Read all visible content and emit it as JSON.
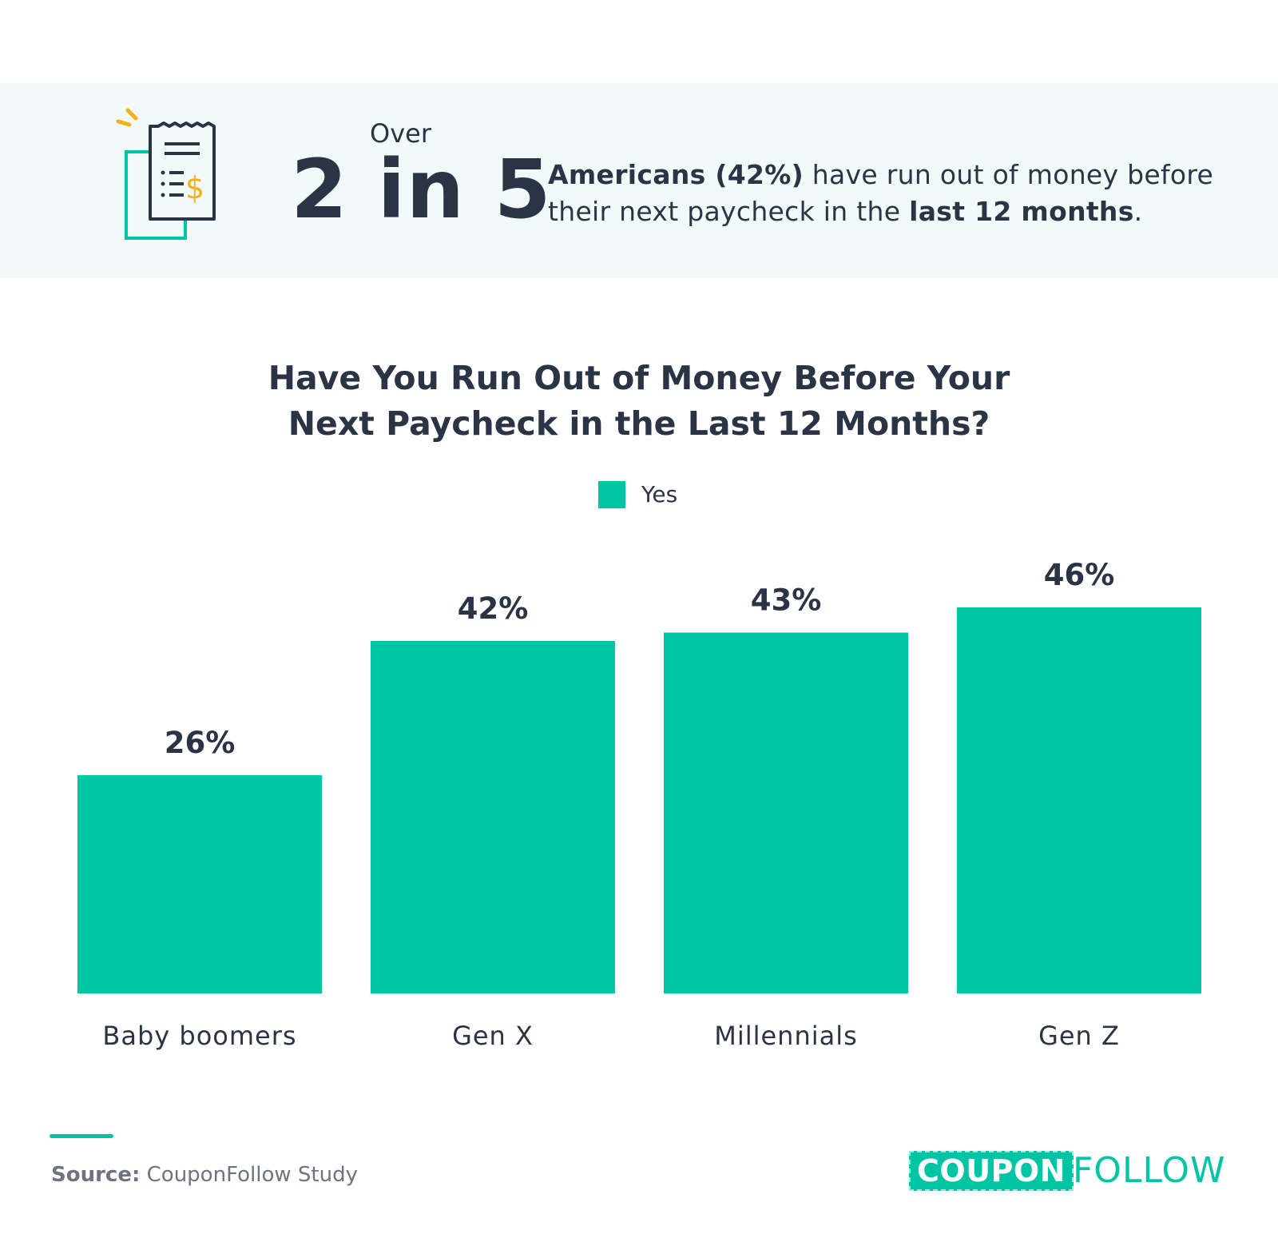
{
  "banner": {
    "over": "Over",
    "stat": "2 in 5",
    "headline_bold_1": "Americans (42%)",
    "headline_text_1": " have run out of money before their next paycheck in the ",
    "headline_bold_2": "last 12 months",
    "headline_text_2": ".",
    "icon": "receipt-dollar-icon"
  },
  "colors": {
    "accent": "#00c5a5",
    "text": "#2b3445",
    "banner_bg": "#f1faf8",
    "icon_yellow": "#f2b01e"
  },
  "chart_data": {
    "type": "bar",
    "title": "Have You Run Out of Money Before Your Next Paycheck in the Last 12 Months?",
    "title_line_1": "Have You Run Out of Money Before Your",
    "title_line_2": "Next Paycheck in the Last 12 Months?",
    "categories": [
      "Baby boomers",
      "Gen X",
      "Millennials",
      "Gen Z"
    ],
    "series": [
      {
        "name": "Yes",
        "values": [
          26,
          42,
          43,
          46
        ]
      }
    ],
    "value_labels": [
      "26%",
      "42%",
      "43%",
      "46%"
    ],
    "unit": "%",
    "ylim": [
      0,
      50
    ],
    "grid": false,
    "legend": "top-center"
  },
  "footer": {
    "source_label": "Source:",
    "source_text": " CouponFollow Study",
    "logo_part_1": "COUPON",
    "logo_part_2": "FOLLOW"
  }
}
